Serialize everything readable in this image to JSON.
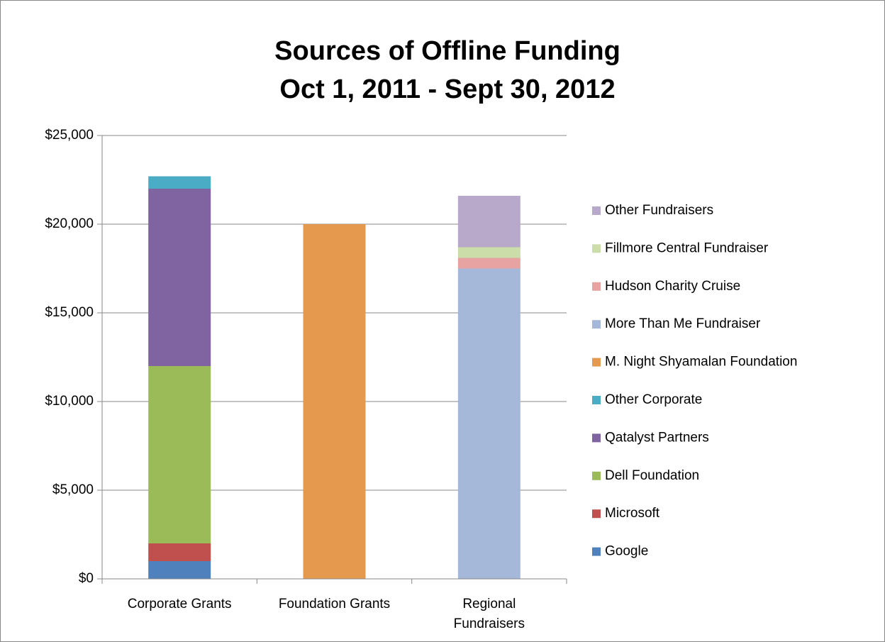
{
  "chart_data": {
    "type": "stacked_bar",
    "title": [
      "Sources of Offline Funding",
      "Oct 1, 2011 - Sept 30, 2012"
    ],
    "categories": [
      "Corporate Grants",
      "Foundation Grants",
      "Regional Fundraisers"
    ],
    "series": [
      {
        "name": "Google",
        "color": "#4f81bd",
        "values": [
          1000,
          null,
          null
        ]
      },
      {
        "name": "Microsoft",
        "color": "#c0504d",
        "values": [
          1000,
          null,
          null
        ]
      },
      {
        "name": "Dell Foundation",
        "color": "#9bbb59",
        "values": [
          10000,
          null,
          null
        ]
      },
      {
        "name": "Qatalyst Partners",
        "color": "#8064a2",
        "values": [
          10000,
          null,
          null
        ]
      },
      {
        "name": "Other Corporate",
        "color": "#4bacc6",
        "values": [
          700,
          null,
          null
        ]
      },
      {
        "name": "M. Night Shyamalan Foundation",
        "color": "#e4994f",
        "values": [
          null,
          20000,
          null
        ]
      },
      {
        "name": "More Than Me Fundraiser",
        "color": "#a5b8da",
        "values": [
          null,
          null,
          17500
        ]
      },
      {
        "name": "Hudson Charity Cruise",
        "color": "#e6a3a2",
        "values": [
          null,
          null,
          600
        ]
      },
      {
        "name": "Fillmore Central Fundraiser",
        "color": "#cbdda8",
        "values": [
          null,
          null,
          600
        ]
      },
      {
        "name": "Other Fundraisers",
        "color": "#b8a9ca",
        "values": [
          null,
          null,
          2900
        ]
      }
    ],
    "ylim": [
      0,
      25000
    ],
    "yticks": [
      {
        "value": 0,
        "label": "$0"
      },
      {
        "value": 5000,
        "label": "$5,000"
      },
      {
        "value": 10000,
        "label": "$10,000"
      },
      {
        "value": 15000,
        "label": "$15,000"
      },
      {
        "value": 20000,
        "label": "$20,000"
      },
      {
        "value": 25000,
        "label": "$25,000"
      }
    ],
    "grid": true,
    "legend": "right"
  }
}
